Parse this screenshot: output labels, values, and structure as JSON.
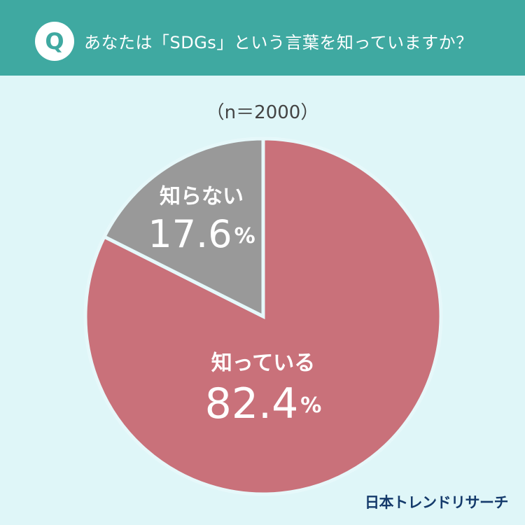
{
  "header": {
    "badge": "Q",
    "question": "あなたは「SDGs」という言葉を知っていますか？"
  },
  "sample_label": "（n＝2000）",
  "brand": "日本トレンドリサーチ",
  "colors": {
    "header_bg": "#3fa9a1",
    "background": "#dff6f8",
    "know": "#c9717a",
    "dont_know": "#999999"
  },
  "chart_data": {
    "type": "pie",
    "title": "",
    "slices": [
      {
        "label": "知っている",
        "value": 82.4,
        "display": "82.4",
        "color": "#c9717a"
      },
      {
        "label": "知らない",
        "value": 17.6,
        "display": "17.6",
        "color": "#999999"
      }
    ],
    "unit": "%",
    "start": "12 o'clock",
    "direction": "clockwise",
    "legend": "none (labels inside slices)"
  }
}
